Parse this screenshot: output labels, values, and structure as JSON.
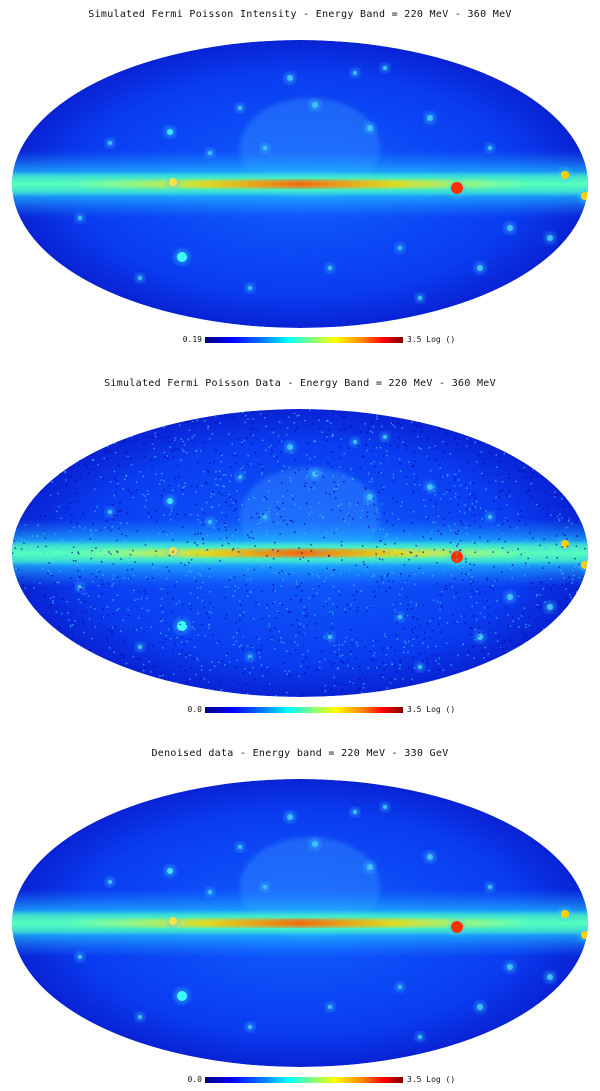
{
  "panels": [
    {
      "title": "Simulated Fermi Poisson Intensity -  Energy Band = 220 MeV - 360 MeV",
      "colorbar": {
        "min_label": "0.19",
        "max_label": "3.5 Log ()"
      },
      "noise": "none"
    },
    {
      "title": "Simulated Fermi Poisson Data -  Energy Band = 220 MeV - 360 MeV",
      "colorbar": {
        "min_label": "0.0",
        "max_label": "3.5 Log ()"
      },
      "noise": "poisson"
    },
    {
      "title": "Denoised data - Energy band = 220 MeV - 330 GeV",
      "colorbar": {
        "min_label": "0.0",
        "max_label": "3.5 Log ()"
      },
      "noise": "none"
    }
  ],
  "colormap": [
    "#00007f",
    "#0000ff",
    "#0080ff",
    "#00ffff",
    "#80ff80",
    "#ffff00",
    "#ff8000",
    "#ff0000",
    "#7f0000"
  ]
}
